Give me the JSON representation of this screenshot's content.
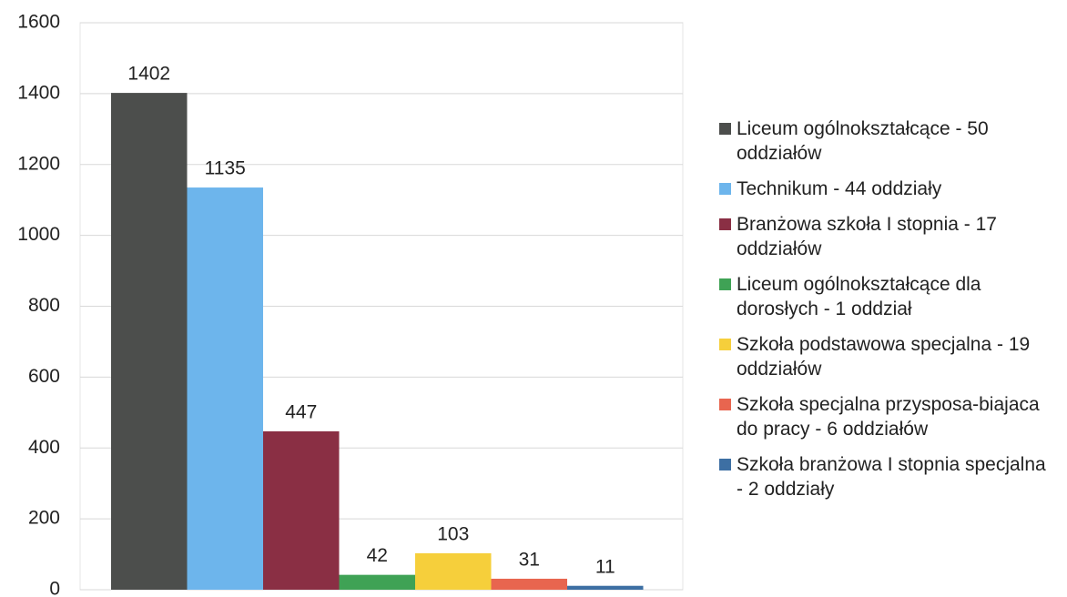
{
  "chart_data": {
    "type": "bar",
    "series": [
      {
        "name": "Liceum ogólnokształcące - 50 oddziałów",
        "color": "#4c4e4c",
        "values": [
          1402
        ]
      },
      {
        "name": "Technikum - 44 oddziały",
        "color": "#6db5ec",
        "values": [
          1135
        ]
      },
      {
        "name": "Branżowa szkoła I stopnia - 17 oddziałów",
        "color": "#8a2f44",
        "values": [
          447
        ]
      },
      {
        "name": "Liceum ogólnokształcące dla dorosłych - 1 oddział",
        "color": "#3fa255",
        "values": [
          42
        ]
      },
      {
        "name": "Szkoła podstawowa specjalna - 19 oddziałów",
        "color": "#f6cf3b",
        "values": [
          103
        ]
      },
      {
        "name": "Szkoła specjalna przysposa-biajaca do pracy - 6 oddziałów",
        "color": "#e8654f",
        "values": [
          31
        ]
      },
      {
        "name": "Szkoła branżowa I stopnia specjalna - 2 oddziały",
        "color": "#3d6fa3",
        "values": [
          11
        ]
      }
    ],
    "ylim": [
      0,
      1600
    ],
    "yticks": [
      0,
      200,
      400,
      600,
      800,
      1000,
      1200,
      1400,
      1600
    ],
    "grid": true,
    "legend": "right"
  }
}
